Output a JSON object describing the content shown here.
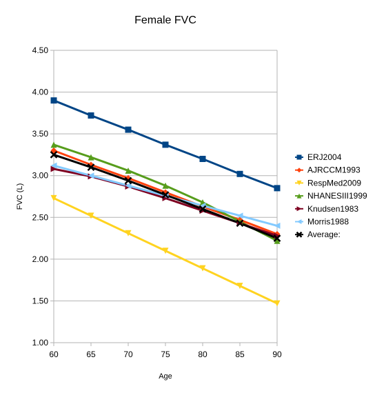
{
  "chart_data": {
    "type": "line",
    "title": "Female FVC",
    "xlabel": "Age",
    "ylabel": "FVC (L)",
    "x": [
      60,
      65,
      70,
      75,
      80,
      85,
      90
    ],
    "x_tick_labels": [
      "60",
      "65",
      "70",
      "75",
      "80",
      "85",
      "90"
    ],
    "xlim": [
      60,
      90
    ],
    "ylim": [
      1.0,
      4.5
    ],
    "y_ticks": [
      1.0,
      1.5,
      2.0,
      2.5,
      3.0,
      3.5,
      4.0,
      4.5
    ],
    "y_tick_labels": [
      "1.00",
      "1.50",
      "2.00",
      "2.50",
      "3.00",
      "3.50",
      "4.00",
      "4.50"
    ],
    "grid": "horizontal",
    "legend_position": "right",
    "series": [
      {
        "name": "ERJ2004",
        "color": "#004586",
        "marker": "square",
        "values": [
          3.9,
          3.72,
          3.55,
          3.37,
          3.2,
          3.02,
          2.85
        ]
      },
      {
        "name": "AJRCCM1993",
        "color": "#ff420e",
        "marker": "diamond",
        "values": [
          3.3,
          3.13,
          2.97,
          2.8,
          2.63,
          2.47,
          2.3
        ]
      },
      {
        "name": "RespMed2009",
        "color": "#ffd320",
        "marker": "triangle-down",
        "values": [
          2.73,
          2.52,
          2.31,
          2.1,
          1.89,
          1.68,
          1.47
        ]
      },
      {
        "name": "NHANESIII1999",
        "color": "#579d1c",
        "marker": "triangle-up",
        "values": [
          3.37,
          3.22,
          3.06,
          2.88,
          2.68,
          2.45,
          2.22
        ]
      },
      {
        "name": "Knudsen1983",
        "color": "#7e0021",
        "marker": "triangle-right",
        "values": [
          3.08,
          2.99,
          2.87,
          2.73,
          2.58,
          2.43,
          2.28
        ]
      },
      {
        "name": "Morris1988",
        "color": "#83caff",
        "marker": "triangle-left",
        "values": [
          3.12,
          3.0,
          2.88,
          2.76,
          2.64,
          2.52,
          2.4
        ]
      },
      {
        "name": "Average:",
        "color": "#000000",
        "marker": "x",
        "values": [
          3.25,
          3.1,
          2.94,
          2.77,
          2.6,
          2.43,
          2.25
        ]
      }
    ]
  }
}
